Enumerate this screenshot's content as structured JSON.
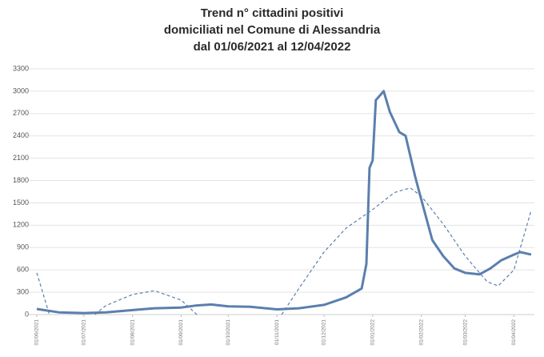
{
  "chart_data": {
    "type": "line",
    "title": [
      "Trend n° cittadini positivi",
      "domiciliati nel Comune di Alessandria",
      "dal 01/06/2021 al 12/04/2022"
    ],
    "xlim": [
      "01/06/2021",
      "12/04/2022"
    ],
    "xticks": [
      "01/06/2021",
      "01/07/2021",
      "01/08/2021",
      "01/09/2021",
      "01/10/2021",
      "01/11/2021",
      "01/12/2021",
      "01/01/2022",
      "01/02/2022",
      "01/03/2022",
      "01/04/2022"
    ],
    "ylim": [
      0,
      3300
    ],
    "yticks": [
      0,
      300,
      600,
      900,
      1200,
      1500,
      1800,
      2100,
      2400,
      2700,
      3000,
      3300
    ],
    "grid": true,
    "series": [
      {
        "color": "#5b7fad",
        "style": "solid",
        "x": [
          "01/06/2021",
          "15/06/2021",
          "01/07/2021",
          "15/07/2021",
          "01/08/2021",
          "15/08/2021",
          "01/09/2021",
          "10/09/2021",
          "20/09/2021",
          "01/10/2021",
          "15/10/2021",
          "01/11/2021",
          "15/11/2021",
          "01/12/2021",
          "15/12/2021",
          "25/12/2021",
          "28/12/2021",
          "30/12/2021",
          "01/01/2022",
          "03/01/2022",
          "08/01/2022",
          "12/01/2022",
          "18/01/2022",
          "22/01/2022",
          "28/01/2022",
          "01/02/2022",
          "08/02/2022",
          "15/02/2022",
          "22/02/2022",
          "01/03/2022",
          "10/03/2022",
          "17/03/2022",
          "24/03/2022",
          "01/04/2022",
          "05/04/2022",
          "12/04/2022"
        ],
        "values": [
          75,
          30,
          20,
          30,
          60,
          85,
          95,
          120,
          135,
          110,
          105,
          70,
          85,
          130,
          230,
          350,
          680,
          1970,
          2070,
          2880,
          3000,
          2720,
          2450,
          2400,
          1860,
          1540,
          1000,
          785,
          620,
          560,
          540,
          620,
          730,
          805,
          840,
          805
        ]
      },
      {
        "color": "#5b7fad",
        "style": "dashed",
        "x": [
          "01/06/2021",
          "09/06/2021",
          "20/06/2021",
          "08/07/2021",
          "15/07/2021",
          "01/08/2021",
          "15/08/2021",
          "01/09/2021",
          "11/09/2021",
          "10/10/2021",
          "04/11/2021",
          "15/11/2021",
          "01/12/2021",
          "15/12/2021",
          "01/01/2022",
          "15/01/2022",
          "25/01/2022",
          "01/02/2022",
          "15/02/2022",
          "01/03/2022",
          "15/03/2022",
          "22/03/2022",
          "01/04/2022",
          "12/04/2022"
        ],
        "values": [
          560,
          0,
          null,
          0,
          120,
          270,
          320,
          195,
          0,
          null,
          0,
          350,
          840,
          1160,
          1410,
          1640,
          1700,
          1590,
          1215,
          785,
          440,
          385,
          600,
          1400
        ]
      }
    ]
  }
}
